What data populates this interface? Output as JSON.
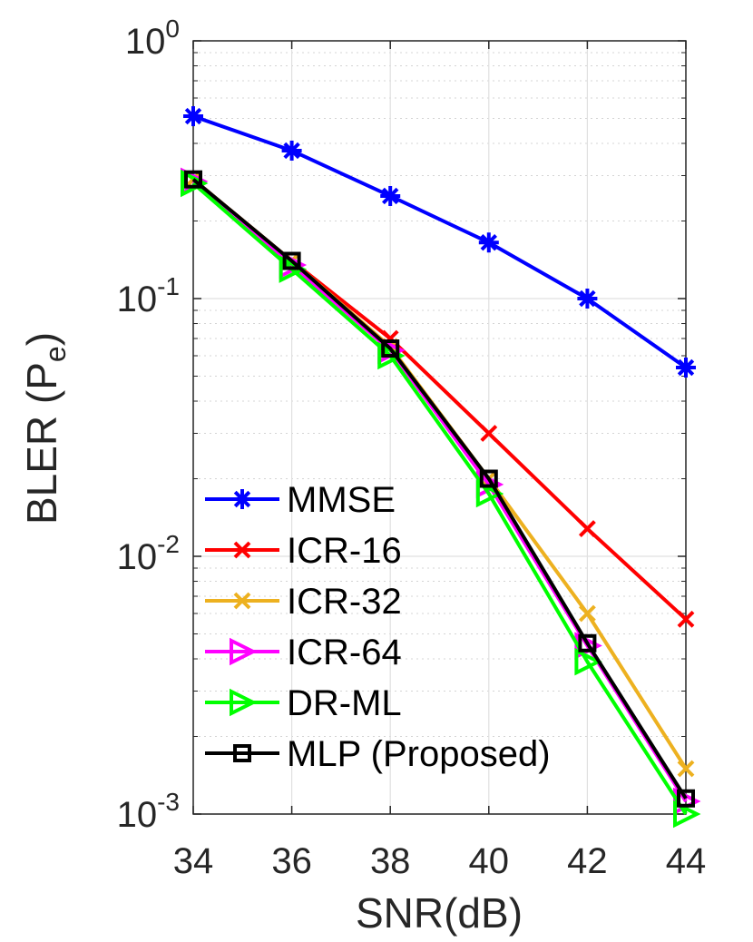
{
  "chart_data": {
    "type": "line",
    "yscale": "log",
    "title": "",
    "xlabel": "SNR(dB)",
    "ylabel_main": "BLER (P",
    "ylabel_sub": "e",
    "ylabel_close": ")",
    "xlim": [
      34,
      44
    ],
    "ylim": [
      0.001,
      1
    ],
    "x": [
      34,
      36,
      38,
      40,
      42,
      44
    ],
    "xticks": [
      "34",
      "36",
      "38",
      "40",
      "42",
      "44"
    ],
    "yticks": [
      {
        "base": "10",
        "exp": "0"
      },
      {
        "base": "10",
        "exp": "-1"
      },
      {
        "base": "10",
        "exp": "-2"
      },
      {
        "base": "10",
        "exp": "-3"
      }
    ],
    "grid": true,
    "legend_position": "bottom-left",
    "series": [
      {
        "name": "MMSE",
        "color": "#0000ff",
        "marker": "asterisk",
        "values": [
          0.51,
          0.375,
          0.25,
          0.165,
          0.1,
          0.054
        ]
      },
      {
        "name": "ICR-16",
        "color": "#ff0000",
        "marker": "x",
        "values": [
          0.29,
          0.14,
          0.07,
          0.03,
          0.0128,
          0.0057
        ]
      },
      {
        "name": "ICR-32",
        "color": "#edb120",
        "marker": "x",
        "values": [
          0.29,
          0.14,
          0.065,
          0.02,
          0.006,
          0.0015
        ]
      },
      {
        "name": "ICR-64",
        "color": "#ff00ff",
        "marker": "triangle-right",
        "values": [
          0.285,
          0.135,
          0.063,
          0.019,
          0.0045,
          0.00112
        ]
      },
      {
        "name": "DR-ML",
        "color": "#00ff00",
        "marker": "triangle-right",
        "values": [
          0.28,
          0.13,
          0.06,
          0.0175,
          0.0039,
          0.001
        ]
      },
      {
        "name": "MLP (Proposed)",
        "color": "#000000",
        "marker": "square",
        "values": [
          0.29,
          0.14,
          0.064,
          0.02,
          0.0046,
          0.00115
        ]
      }
    ]
  }
}
